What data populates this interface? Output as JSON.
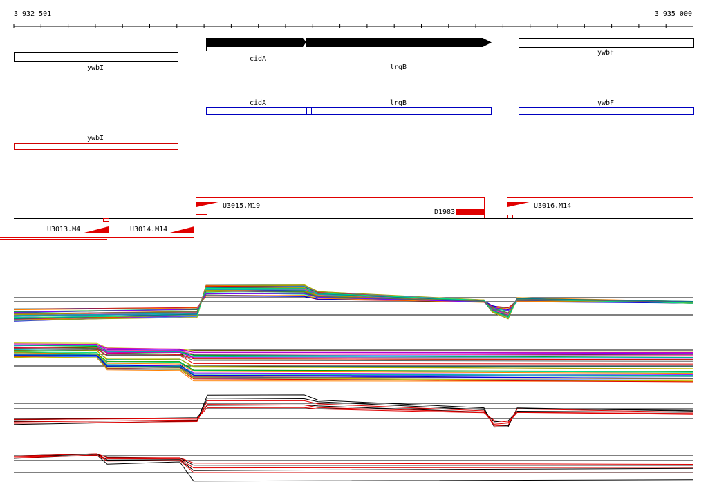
{
  "ruler": {
    "start": "3 932 501",
    "end": "3 935 000"
  },
  "genes_top": [
    {
      "label": "ywbI"
    },
    {
      "label": "cidA"
    },
    {
      "label": "lrgB"
    },
    {
      "label": "ywbF"
    }
  ],
  "genes_mid": [
    {
      "label": "cidA"
    },
    {
      "label": "lrgB"
    },
    {
      "label": "ywbF"
    }
  ],
  "genes_low": [
    {
      "label": "ywbI"
    }
  ],
  "segments": [
    {
      "label": "U3015.M19"
    },
    {
      "label": "D1983"
    },
    {
      "label": "U3016.M14"
    },
    {
      "label": "U3013.M4"
    },
    {
      "label": "U3014.M14"
    }
  ]
}
